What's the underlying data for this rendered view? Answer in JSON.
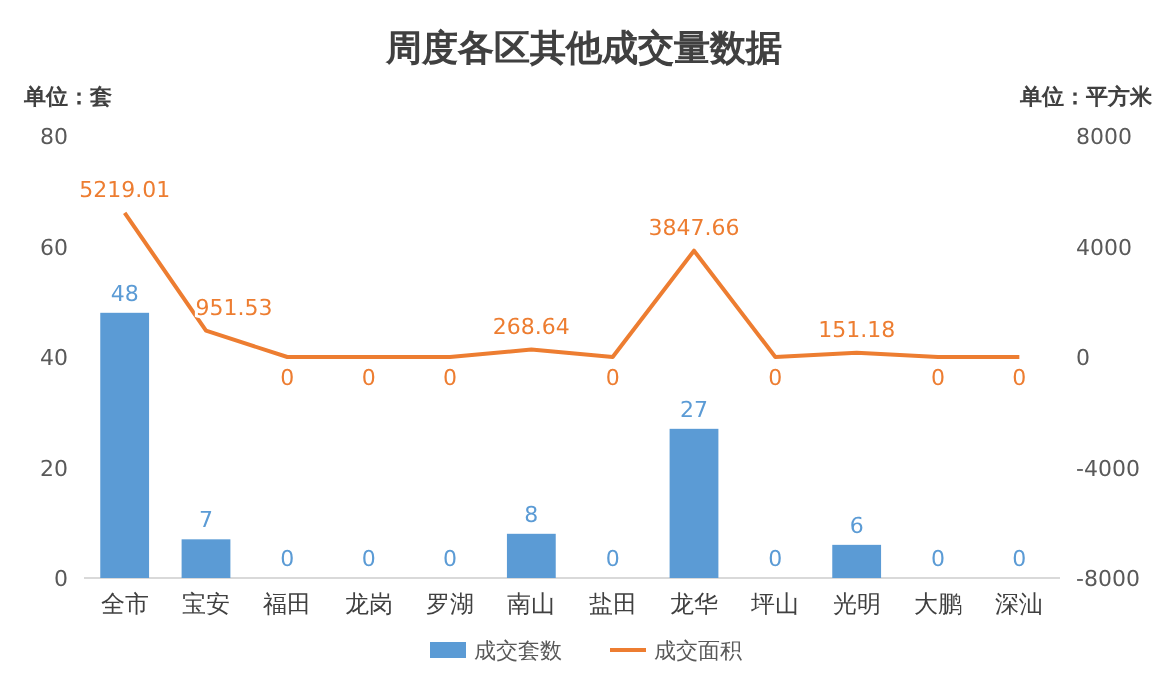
{
  "chart_data": {
    "type": "bar",
    "title": "周度各区其他成交量数据",
    "ylabel": "单位：套",
    "y2label": "单位：平方米",
    "categories": [
      "全市",
      "宝安",
      "福田",
      "龙岗",
      "罗湖",
      "南山",
      "盐田",
      "龙华",
      "坪山",
      "光明",
      "大鹏",
      "深汕"
    ],
    "series": [
      {
        "name": "成交套数",
        "color": "#5b9bd5",
        "values": [
          48,
          7,
          0,
          0,
          0,
          8,
          0,
          27,
          0,
          6,
          0,
          0
        ]
      },
      {
        "name": "成交面积",
        "type": "line",
        "axis": "y2",
        "color": "#ed7d31",
        "values": [
          5219.01,
          951.53,
          0,
          0,
          0,
          268.64,
          0,
          3847.66,
          0,
          151.18,
          0,
          0
        ]
      }
    ],
    "ylim": [
      0,
      80
    ],
    "yticks": [
      0,
      20,
      40,
      60,
      80
    ],
    "y2lim": [
      -8000,
      8000
    ],
    "y2ticks": [
      -8000,
      -4000,
      0,
      4000,
      8000
    ],
    "data_labels": true,
    "legend": "bottom",
    "grid": false
  }
}
